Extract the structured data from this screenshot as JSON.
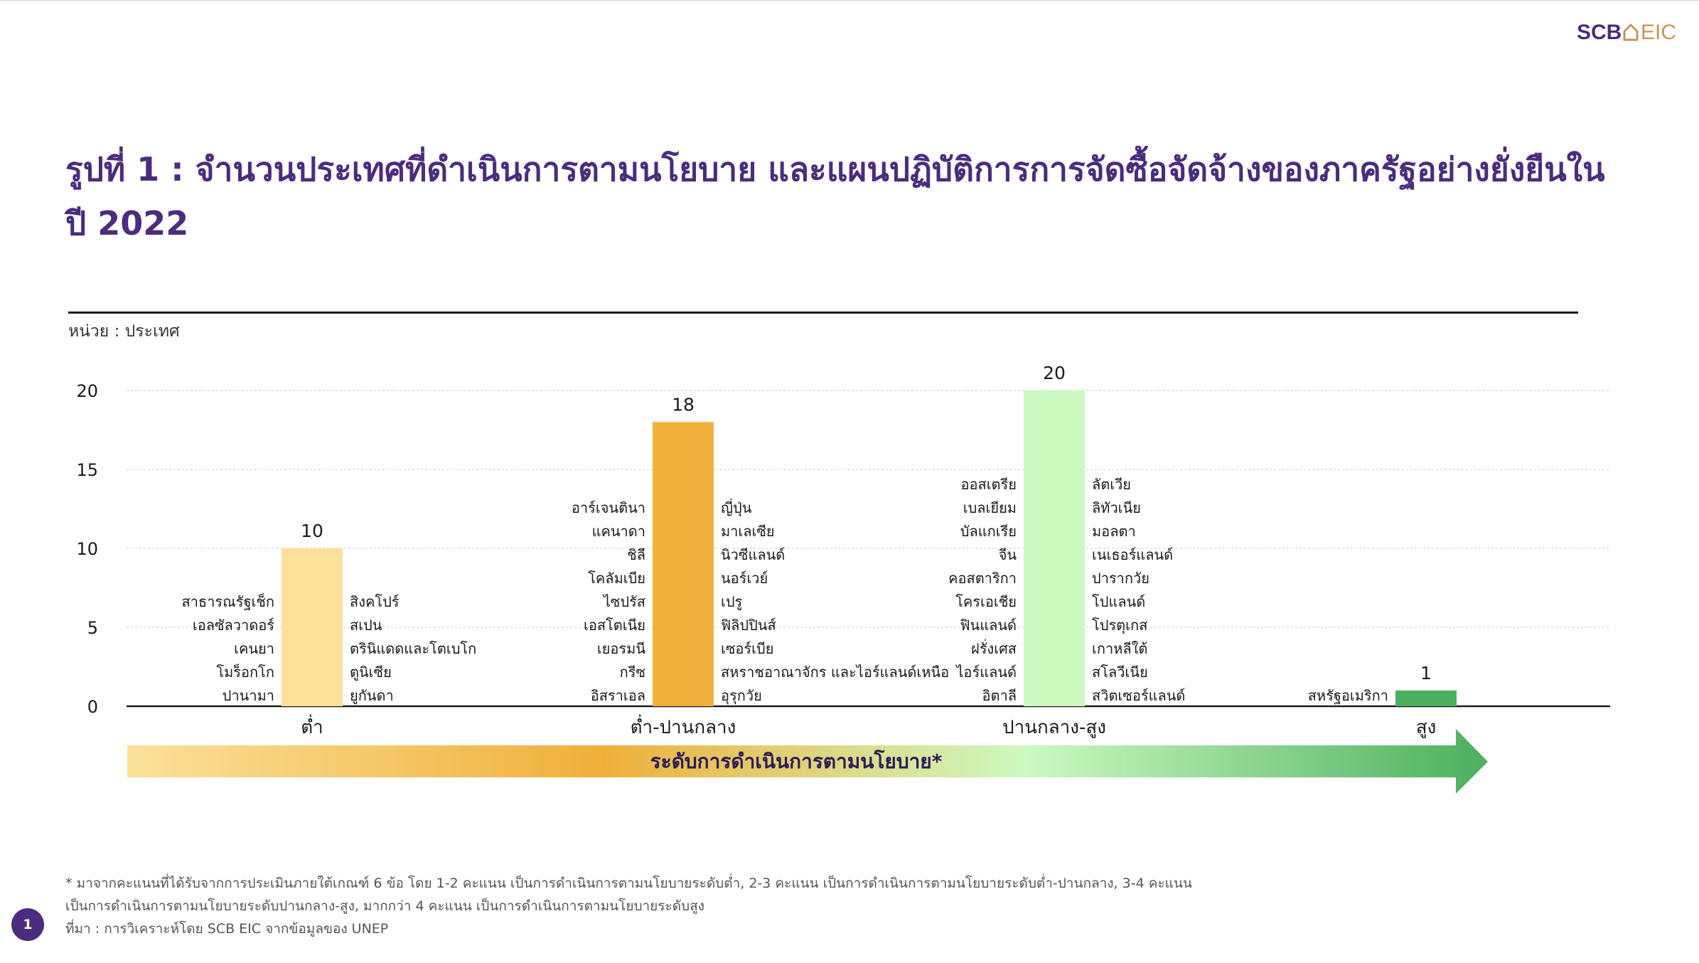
{
  "brand": {
    "name": "SCB EIC",
    "part1": "SCB",
    "part2": "EIC",
    "color": "#4b2c7e",
    "accent": "#c6955a"
  },
  "title": {
    "line1": "รูปที่ 1 : จำนวนประเทศที่ดำเนินการตามนโยบาย และแผนปฏิบัติการการจัดซื้อจัดจ้างของภาครัฐอย่างยั่งยืนใน",
    "line2": "ปี 2022"
  },
  "unit_label": "หน่วย : ประเทศ",
  "arrow_label": "ระดับการดำเนินการตามนโยบาย*",
  "chart_data": {
    "type": "bar",
    "categories": [
      "ต่ำ",
      "ต่ำ-ปานกลาง",
      "ปานกลาง-สูง",
      "สูง"
    ],
    "values": [
      10,
      18,
      20,
      1
    ],
    "bar_colors": [
      "#fbe19a",
      "#f1b23d",
      "#ccf9c0",
      "#4caf5f"
    ],
    "ylim": [
      0,
      20
    ],
    "yticks": [
      0,
      5,
      10,
      15,
      20
    ],
    "grid": true,
    "country_labels": [
      {
        "left": [
          "สาธารณรัฐเช็ก",
          "เอลซัลวาดอร์",
          "เคนยา",
          "โมร็อกโก",
          "ปานามา"
        ],
        "right": [
          "สิงคโปร์",
          "สเปน",
          "ตรินิแดดและโตเบโก",
          "ตูนิเซีย",
          "ยูกันดา"
        ]
      },
      {
        "left": [
          "อาร์เจนตินา",
          "แคนาดา",
          "ชิลี",
          "โคลัมเบีย",
          "ไซปรัส",
          "เอสโตเนีย",
          "เยอรมนี",
          "กรีซ",
          "อิสราเอล"
        ],
        "right": [
          "ญี่ปุ่น",
          "มาเลเซีย",
          "นิวซีแลนด์",
          "นอร์เวย์",
          "เปรู",
          "ฟิลิปปินส์",
          "เซอร์เบีย",
          "สหราชอาณาจักร และไอร์แลนด์เหนือ",
          "อุรุกวัย"
        ]
      },
      {
        "left": [
          "ออสเตรีย",
          "เบลเยียม",
          "บัลแกเรีย",
          "จีน",
          "คอสตาริกา",
          "โครเอเชีย",
          "ฟินแลนด์",
          "ฝรั่งเศส",
          "ไอร์แลนด์",
          "อิตาลี"
        ],
        "right": [
          "ลัตเวีย",
          "ลิทัวเนีย",
          "มอลตา",
          "เนเธอร์แลนด์",
          "ปารากวัย",
          "โปแลนด์",
          "โปรตุเกส",
          "เกาหลีใต้",
          "สโลวีเนีย",
          "สวิตเซอร์แลนด์"
        ]
      },
      {
        "left": [
          "สหรัฐอเมริกา"
        ],
        "right": []
      }
    ]
  },
  "footer": {
    "note_line1": "* มาจากคะแนนที่ได้รับจากการประเมินภายใต้เกณฑ์ 6 ข้อ โดย 1-2 คะแนน เป็นการดำเนินการตามนโยบายระดับต่ำ, 2-3 คะแนน เป็นการดำเนินการตามนโยบายระดับต่ำ-ปานกลาง, 3-4 คะแนน",
    "note_line2": "เป็นการดำเนินการตามนโยบายระดับปานกลาง-สูง, มากกว่า 4 คะแนน เป็นการดำเนินการตามนโยบายระดับสูง",
    "source": "ที่มา : การวิเคราะห์โดย SCB EIC จากข้อมูลของ UNEP"
  },
  "page_number": "1"
}
